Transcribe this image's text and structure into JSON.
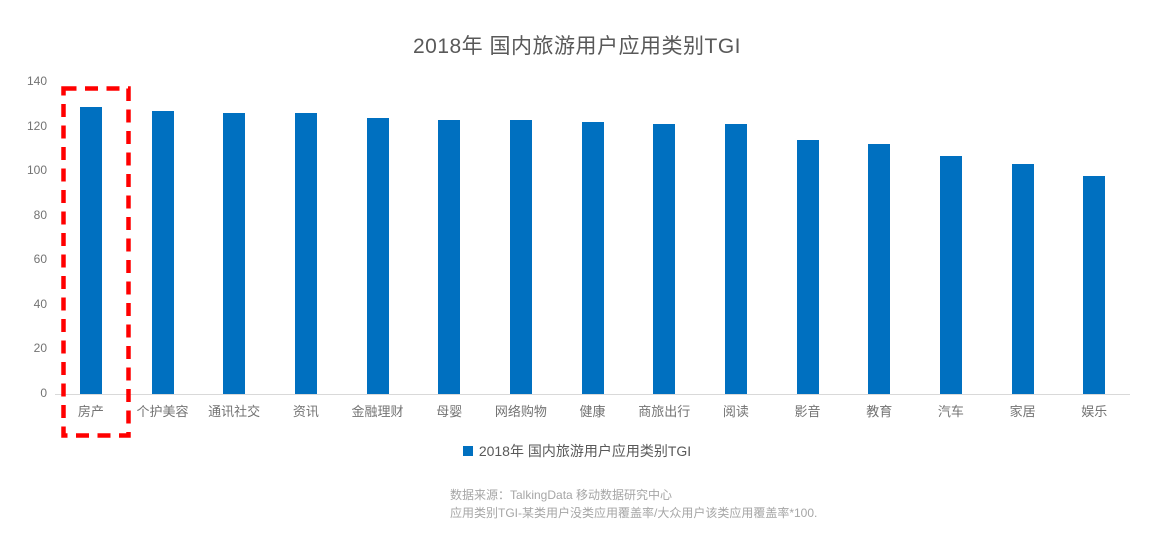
{
  "chart_data": {
    "type": "bar",
    "title": "2018年 国内旅游用户应用类别TGI",
    "categories": [
      "房产",
      "个护美容",
      "通讯社交",
      "资讯",
      "金融理财",
      "母婴",
      "网络购物",
      "健康",
      "商旅出行",
      "阅读",
      "影音",
      "教育",
      "汽车",
      "家居",
      "娱乐"
    ],
    "values": [
      129,
      127,
      126,
      126,
      124,
      123,
      123,
      122,
      121,
      121,
      114,
      112,
      107,
      103,
      98
    ],
    "xlabel": "",
    "ylabel": "",
    "ylim": [
      0,
      140
    ],
    "ytick_step": 20,
    "grid": false,
    "legend_position": "bottom",
    "bar_color": "#0070C0",
    "annotation": {
      "type": "dashed-rectangle",
      "around_category": "房产",
      "color": "#FF0000"
    }
  },
  "legend": {
    "label": "2018年 国内旅游用户应用类别TGI",
    "marker_color": "#0070C0"
  },
  "footer": {
    "line1": "数据来源：TalkingData 移动数据研究中心",
    "line2": "应用类别TGI-某类用户没类应用覆盖率/大众用户该类应用覆盖率*100."
  },
  "colors": {
    "bar": "#0070C0",
    "highlight_box": "#FF0000",
    "axis_line": "#D9D9D9",
    "title_text": "#595959",
    "axis_text": "#737373",
    "footer_text": "#A6A6A6"
  }
}
